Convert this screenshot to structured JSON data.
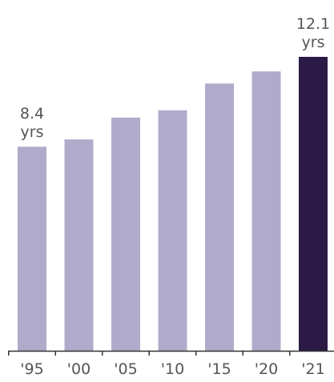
{
  "chart_data": {
    "type": "bar",
    "categories": [
      "'95",
      "'00",
      "'05",
      "'10",
      "'15",
      "'20",
      "'21"
    ],
    "values": [
      8.4,
      8.7,
      9.6,
      9.9,
      11.0,
      11.5,
      12.1
    ],
    "ylim": [
      0,
      12.1
    ],
    "title": "",
    "xlabel": "",
    "ylabel": "",
    "grid": false,
    "colors": {
      "bar": "#b0abca",
      "highlight_bar": "#2a1a45",
      "axis": "#333333",
      "text": "#555555"
    },
    "highlight_index": 6,
    "annotations": [
      {
        "index": 0,
        "value_text": "8.4",
        "unit_text": "yrs"
      },
      {
        "index": 6,
        "value_text": "12.1",
        "unit_text": "yrs"
      }
    ]
  }
}
